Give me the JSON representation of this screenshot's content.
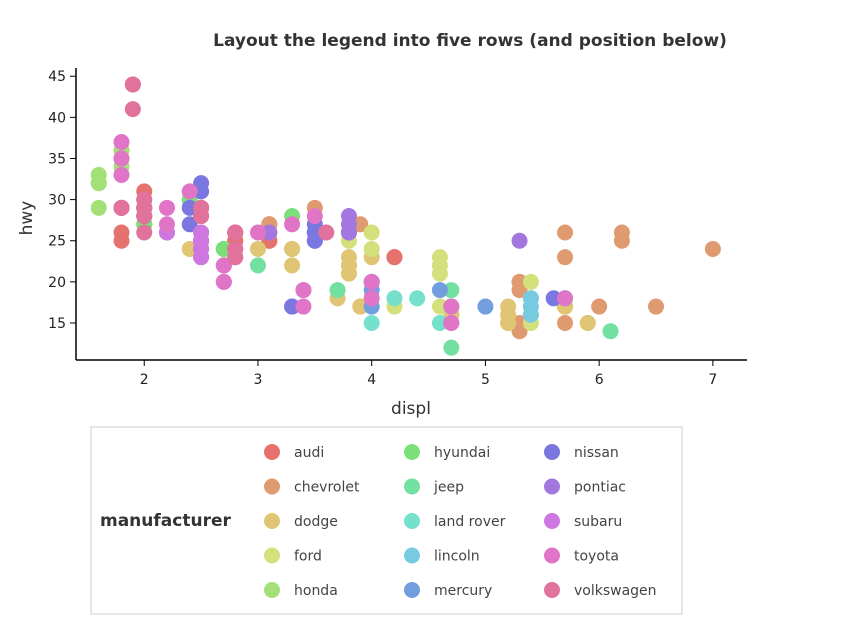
{
  "chart_data": {
    "type": "scatter",
    "title": "Layout the legend into five rows (and position below)",
    "xlabel": "displ",
    "ylabel": "hwy",
    "xlim": [
      1.4,
      7.3
    ],
    "ylim": [
      10.5,
      46
    ],
    "xticks": [
      2,
      3,
      4,
      5,
      6,
      7
    ],
    "yticks": [
      15,
      20,
      25,
      30,
      35,
      40,
      45
    ],
    "grid": false,
    "legend": {
      "title": "manufacturer",
      "position": "bottom",
      "rows": 5
    },
    "series": [
      {
        "name": "audi",
        "color": "#e5726e",
        "points": [
          [
            1.8,
            29
          ],
          [
            1.8,
            29
          ],
          [
            2.0,
            31
          ],
          [
            2.0,
            30
          ],
          [
            2.8,
            26
          ],
          [
            2.8,
            26
          ],
          [
            3.1,
            27
          ],
          [
            1.8,
            26
          ],
          [
            1.8,
            25
          ],
          [
            2.0,
            28
          ],
          [
            2.0,
            27
          ],
          [
            2.8,
            25
          ],
          [
            2.8,
            25
          ],
          [
            3.1,
            25
          ],
          [
            3.1,
            25
          ],
          [
            4.2,
            23
          ],
          [
            4.2,
            23
          ]
        ]
      },
      {
        "name": "chevrolet",
        "color": "#e09a70",
        "points": [
          [
            5.3,
            20
          ],
          [
            5.3,
            15
          ],
          [
            5.3,
            20
          ],
          [
            5.7,
            17
          ],
          [
            6.0,
            17
          ],
          [
            5.7,
            26
          ],
          [
            5.7,
            23
          ],
          [
            6.2,
            26
          ],
          [
            6.2,
            25
          ],
          [
            7.0,
            24
          ],
          [
            5.3,
            19
          ],
          [
            5.3,
            14
          ],
          [
            5.7,
            15
          ],
          [
            6.5,
            17
          ],
          [
            3.1,
            27
          ],
          [
            3.5,
            29
          ],
          [
            3.1,
            26
          ],
          [
            3.5,
            26
          ],
          [
            3.5,
            26
          ],
          [
            3.9,
            27
          ]
        ]
      },
      {
        "name": "dodge",
        "color": "#e0c574",
        "points": [
          [
            2.4,
            24
          ],
          [
            3.0,
            24
          ],
          [
            3.3,
            22
          ],
          [
            3.3,
            24
          ],
          [
            3.3,
            24
          ],
          [
            3.8,
            23
          ],
          [
            3.8,
            21
          ],
          [
            3.8,
            22
          ],
          [
            4.0,
            23
          ],
          [
            3.7,
            19
          ],
          [
            3.7,
            18
          ],
          [
            3.9,
            17
          ],
          [
            3.9,
            17
          ],
          [
            4.7,
            17
          ],
          [
            4.7,
            16
          ],
          [
            4.7,
            17
          ],
          [
            5.2,
            17
          ],
          [
            5.2,
            15
          ],
          [
            5.7,
            17
          ],
          [
            5.9,
            15
          ],
          [
            4.7,
            17
          ],
          [
            4.7,
            16
          ],
          [
            5.2,
            16
          ],
          [
            5.2,
            15
          ],
          [
            5.7,
            17
          ],
          [
            5.9,
            15
          ],
          [
            4.7,
            16
          ],
          [
            5.2,
            15
          ],
          [
            3.8,
            21
          ],
          [
            3.8,
            22
          ]
        ]
      },
      {
        "name": "ford",
        "color": "#d4e07c",
        "points": [
          [
            3.8,
            25
          ],
          [
            4.0,
            24
          ],
          [
            4.0,
            26
          ],
          [
            4.6,
            23
          ],
          [
            4.6,
            22
          ],
          [
            4.6,
            21
          ],
          [
            5.4,
            20
          ],
          [
            4.2,
            17
          ],
          [
            4.6,
            17
          ],
          [
            5.4,
            15
          ],
          [
            5.4,
            18
          ],
          [
            5.4,
            16
          ],
          [
            1.8,
            36
          ],
          [
            1.8,
            34
          ],
          [
            2.0,
            29
          ],
          [
            4.0,
            20
          ]
        ]
      },
      {
        "name": "honda",
        "color": "#a3e077",
        "points": [
          [
            1.6,
            33
          ],
          [
            1.6,
            32
          ],
          [
            1.6,
            32
          ],
          [
            1.6,
            29
          ],
          [
            1.6,
            32
          ],
          [
            1.8,
            34
          ],
          [
            1.8,
            36
          ],
          [
            1.8,
            36
          ],
          [
            2.0,
            29
          ]
        ]
      },
      {
        "name": "hyundai",
        "color": "#7be07a",
        "points": [
          [
            2.4,
            30
          ],
          [
            2.4,
            30
          ],
          [
            2.5,
            28
          ],
          [
            2.5,
            26
          ],
          [
            2.7,
            24
          ],
          [
            2.7,
            24
          ],
          [
            3.3,
            28
          ],
          [
            2.0,
            27
          ],
          [
            2.0,
            27
          ],
          [
            2.7,
            24
          ]
        ]
      },
      {
        "name": "jeep",
        "color": "#72e0a0",
        "points": [
          [
            3.0,
            22
          ],
          [
            3.7,
            19
          ],
          [
            4.0,
            20
          ],
          [
            4.7,
            17
          ],
          [
            4.7,
            12
          ],
          [
            4.7,
            19
          ],
          [
            5.7,
            18
          ],
          [
            6.1,
            14
          ]
        ]
      },
      {
        "name": "land rover",
        "color": "#75e0cc",
        "points": [
          [
            4.0,
            15
          ],
          [
            4.2,
            18
          ],
          [
            4.4,
            18
          ],
          [
            4.6,
            15
          ]
        ]
      },
      {
        "name": "lincoln",
        "color": "#76cbe0",
        "points": [
          [
            5.4,
            17
          ],
          [
            5.4,
            16
          ],
          [
            5.4,
            18
          ]
        ]
      },
      {
        "name": "mercury",
        "color": "#729ee0",
        "points": [
          [
            4.0,
            19
          ],
          [
            4.0,
            17
          ],
          [
            4.6,
            19
          ],
          [
            5.0,
            17
          ]
        ]
      },
      {
        "name": "nissan",
        "color": "#7a77e0",
        "points": [
          [
            2.4,
            29
          ],
          [
            2.4,
            27
          ],
          [
            2.5,
            31
          ],
          [
            2.5,
            32
          ],
          [
            3.5,
            27
          ],
          [
            3.5,
            26
          ],
          [
            3.5,
            26
          ],
          [
            3.5,
            25
          ],
          [
            3.5,
            25
          ],
          [
            3.3,
            17
          ],
          [
            3.3,
            17
          ],
          [
            4.0,
            20
          ],
          [
            5.6,
            18
          ]
        ]
      },
      {
        "name": "pontiac",
        "color": "#a277e0",
        "points": [
          [
            3.1,
            26
          ],
          [
            3.8,
            27
          ],
          [
            3.8,
            26
          ],
          [
            3.8,
            26
          ],
          [
            5.3,
            25
          ],
          [
            3.8,
            28
          ]
        ]
      },
      {
        "name": "subaru",
        "color": "#ce77e0",
        "points": [
          [
            2.5,
            26
          ],
          [
            2.5,
            26
          ],
          [
            2.5,
            25
          ],
          [
            2.5,
            25
          ],
          [
            2.5,
            24
          ],
          [
            2.5,
            24
          ],
          [
            2.2,
            26
          ],
          [
            2.2,
            26
          ],
          [
            2.5,
            23
          ],
          [
            2.5,
            23
          ],
          [
            2.5,
            25
          ],
          [
            2.5,
            25
          ],
          [
            2.7,
            22
          ]
        ]
      },
      {
        "name": "toyota",
        "color": "#e075c7",
        "points": [
          [
            2.7,
            20
          ],
          [
            2.7,
            20
          ],
          [
            3.4,
            19
          ],
          [
            3.4,
            17
          ],
          [
            4.0,
            20
          ],
          [
            4.7,
            17
          ],
          [
            4.7,
            15
          ],
          [
            5.7,
            18
          ],
          [
            2.7,
            22
          ],
          [
            3.4,
            19
          ],
          [
            4.0,
            18
          ],
          [
            4.7,
            15
          ],
          [
            1.8,
            35
          ],
          [
            1.8,
            37
          ],
          [
            1.8,
            35
          ],
          [
            1.8,
            33
          ],
          [
            2.2,
            29
          ],
          [
            2.2,
            27
          ],
          [
            2.4,
            31
          ],
          [
            3.0,
            26
          ],
          [
            3.5,
            28
          ],
          [
            3.3,
            27
          ]
        ]
      },
      {
        "name": "volkswagen",
        "color": "#e0729b",
        "points": [
          [
            1.9,
            44
          ],
          [
            1.9,
            41
          ],
          [
            1.9,
            44
          ],
          [
            2.0,
            29
          ],
          [
            2.0,
            26
          ],
          [
            2.5,
            29
          ],
          [
            2.5,
            29
          ],
          [
            2.8,
            23
          ],
          [
            2.8,
            24
          ],
          [
            2.8,
            26
          ],
          [
            3.6,
            26
          ],
          [
            1.8,
            29
          ],
          [
            2.0,
            29
          ],
          [
            2.0,
            28
          ],
          [
            2.8,
            24
          ],
          [
            2.8,
            23
          ],
          [
            1.8,
            29
          ],
          [
            2.0,
            28
          ],
          [
            2.0,
            29
          ],
          [
            2.5,
            29
          ],
          [
            2.5,
            28
          ],
          [
            2.8,
            26
          ],
          [
            2.0,
            30
          ],
          [
            3.6,
            26
          ]
        ]
      }
    ]
  }
}
